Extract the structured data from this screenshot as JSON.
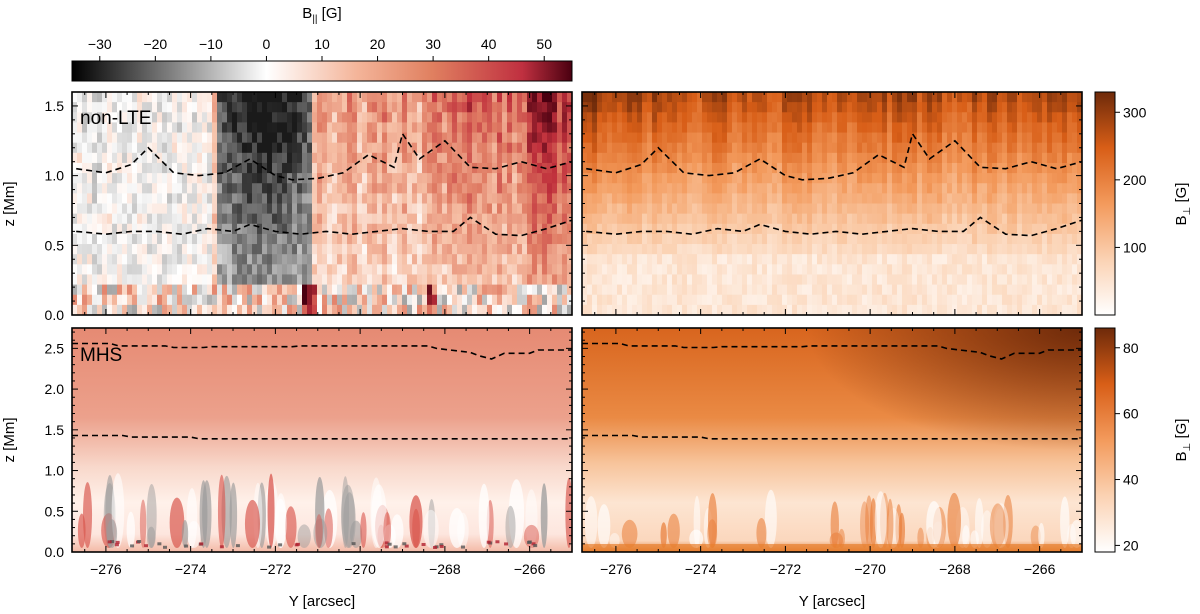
{
  "chart_data": {
    "type": "heatmap",
    "xlabel": "Y [arcsec]",
    "xlim": [
      -276.8,
      -265.0
    ],
    "xticks": [
      -276,
      -274,
      -272,
      -270,
      -268,
      -266
    ],
    "colorbars": {
      "b_par": {
        "label_main": "B",
        "label_sub": "||",
        "label_unit": " [G]",
        "range": [
          -35,
          55
        ],
        "ticks": [
          -30,
          -20,
          -10,
          0,
          10,
          20,
          30,
          40,
          50
        ],
        "colormap": [
          "#000000",
          "#ffffff",
          "#e08060",
          "#c03040",
          "#4a0010"
        ]
      },
      "b_perp_nonlte": {
        "label_main": "B",
        "label_sub": "⊥",
        "label_unit": " [G]",
        "range": [
          0,
          330
        ],
        "ticks": [
          100,
          200,
          300
        ]
      },
      "b_perp_mhs": {
        "label_main": "B",
        "label_sub": "⊥",
        "label_unit": " [G]",
        "range": [
          18,
          86
        ],
        "ticks": [
          20,
          40,
          60,
          80
        ]
      }
    },
    "colormap_perp": [
      "#ffffff",
      "#fbd2b3",
      "#f39a5c",
      "#d85e17",
      "#6e2a0a"
    ],
    "panels": [
      {
        "id": "nonlte_bpar",
        "annotation": "non-LTE",
        "quantity": "B_parallel",
        "ylabel": "z [Mm]",
        "ylim": [
          0.0,
          1.6
        ],
        "yticks": [
          0.0,
          0.5,
          1.0,
          1.5
        ],
        "contours": [
          {
            "x": [
              -276.7,
              -276.0,
              -275.4,
              -275.0,
              -274.4,
              -273.8,
              -273.2,
              -272.6,
              -272.0,
              -271.6,
              -271.0,
              -270.4,
              -269.8,
              -269.2,
              -269.0,
              -268.6,
              -268.0,
              -267.4,
              -266.8,
              -266.2,
              -265.6,
              -265.0
            ],
            "z": [
              1.05,
              1.02,
              1.08,
              1.2,
              1.02,
              1.0,
              1.02,
              1.12,
              1.0,
              0.97,
              0.98,
              1.02,
              1.15,
              1.06,
              1.3,
              1.12,
              1.25,
              1.06,
              1.05,
              1.1,
              1.05,
              1.1
            ]
          },
          {
            "x": [
              -276.7,
              -276.0,
              -275.4,
              -274.8,
              -274.2,
              -273.6,
              -273.0,
              -272.6,
              -272.0,
              -271.4,
              -270.8,
              -270.2,
              -269.6,
              -269.0,
              -268.4,
              -267.8,
              -267.4,
              -266.8,
              -266.2,
              -265.6,
              -265.0
            ],
            "z": [
              0.6,
              0.58,
              0.6,
              0.6,
              0.58,
              0.62,
              0.6,
              0.65,
              0.6,
              0.58,
              0.6,
              0.58,
              0.6,
              0.62,
              0.6,
              0.6,
              0.7,
              0.58,
              0.57,
              0.62,
              0.68
            ]
          }
        ]
      },
      {
        "id": "nonlte_bperp",
        "annotation": "",
        "quantity": "B_perp",
        "ylim": [
          0.0,
          1.6
        ],
        "yticks": [
          0.0,
          0.5,
          1.0,
          1.5
        ],
        "contours": "same as nonlte_bpar"
      },
      {
        "id": "mhs_bpar",
        "annotation": "MHS",
        "quantity": "B_parallel",
        "ylabel": "z [Mm]",
        "ylim": [
          0.0,
          2.75
        ],
        "yticks": [
          0.0,
          0.5,
          1.0,
          1.5,
          2.0,
          2.5
        ],
        "contours": [
          {
            "x": [
              -276.8,
              -275.9,
              -275.7,
              -274.6,
              -274.4,
              -273.7,
              -273.5,
              -271.6,
              -271.4,
              -268.4,
              -268.2,
              -267.4,
              -267.2,
              -266.9,
              -266.6,
              -266.0,
              -265.8,
              -265.0
            ],
            "z": [
              2.56,
              2.56,
              2.53,
              2.53,
              2.51,
              2.51,
              2.52,
              2.52,
              2.53,
              2.53,
              2.5,
              2.45,
              2.41,
              2.37,
              2.44,
              2.44,
              2.48,
              2.48
            ]
          },
          {
            "x": [
              -276.8,
              -275.6,
              -275.4,
              -274.0,
              -273.8,
              -265.0
            ],
            "z": [
              1.43,
              1.43,
              1.41,
              1.41,
              1.39,
              1.39
            ]
          }
        ]
      },
      {
        "id": "mhs_bperp",
        "annotation": "",
        "quantity": "B_perp",
        "ylim": [
          0.0,
          2.75
        ],
        "yticks": [
          0.0,
          0.5,
          1.0,
          1.5,
          2.0,
          2.5
        ],
        "contours": "same as mhs_bpar"
      }
    ]
  }
}
